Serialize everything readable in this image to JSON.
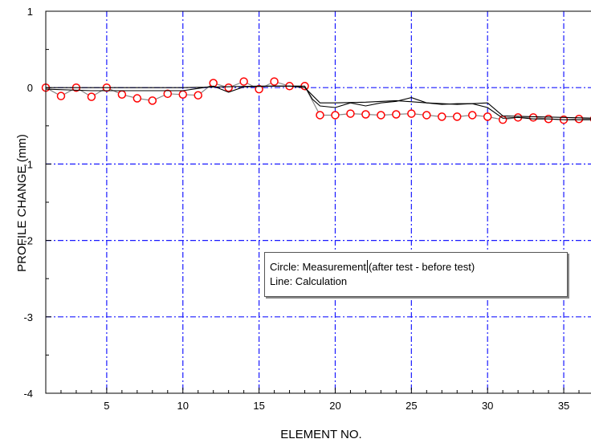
{
  "chart_data": {
    "type": "line",
    "xlabel": "ELEMENT NO.",
    "ylabel": "PROFILE CHANGE (mm)",
    "xlim": [
      1,
      37
    ],
    "ylim": [
      -4,
      1
    ],
    "x_ticks": [
      5,
      10,
      15,
      20,
      25,
      30,
      35
    ],
    "y_ticks": [
      1,
      0,
      -1,
      -2,
      -3,
      -4
    ],
    "grid": true,
    "legend": {
      "position": "lower-right",
      "circle_text_a": "Circle: Measurement",
      "circle_text_b": "(after test - before test)",
      "line_text": "Line: Calculation"
    },
    "series": [
      {
        "marker": "circle",
        "color": "#ff0000",
        "line_color": "#888888",
        "x": [
          1,
          2,
          3,
          4,
          5,
          6,
          7,
          8,
          9,
          10,
          11,
          12,
          13,
          14,
          15,
          16,
          17,
          18,
          19,
          20,
          21,
          22,
          23,
          24,
          25,
          26,
          27,
          28,
          29,
          30,
          31,
          32,
          33,
          34,
          35,
          36,
          37
        ],
        "y": [
          0,
          -0.11,
          0,
          -0.12,
          0,
          -0.09,
          -0.14,
          -0.17,
          -0.08,
          -0.09,
          -0.1,
          0.06,
          0,
          0.08,
          -0.02,
          0.08,
          0.02,
          0.02,
          -0.36,
          -0.36,
          -0.34,
          -0.35,
          -0.36,
          -0.35,
          -0.34,
          -0.36,
          -0.38,
          -0.38,
          -0.36,
          -0.38,
          -0.42,
          -0.39,
          -0.39,
          -0.41,
          -0.42,
          -0.41,
          -0.41
        ]
      },
      {
        "marker": "none",
        "color": "#000000",
        "x": [
          1,
          4,
          8,
          10,
          11,
          12,
          13,
          14,
          16,
          17,
          18,
          18.5,
          19,
          20,
          21,
          22,
          23,
          24,
          25,
          26,
          27,
          28,
          29,
          30,
          31,
          32,
          33,
          34,
          35,
          36,
          37
        ],
        "y": [
          -0.02,
          -0.04,
          -0.04,
          -0.04,
          -0.01,
          0.02,
          -0.06,
          0.01,
          0.02,
          0.02,
          0.02,
          -0.15,
          -0.24,
          -0.26,
          -0.2,
          -0.24,
          -0.2,
          -0.18,
          -0.13,
          -0.2,
          -0.22,
          -0.21,
          -0.21,
          -0.26,
          -0.4,
          -0.39,
          -0.41,
          -0.41,
          -0.42,
          -0.42,
          -0.42
        ]
      },
      {
        "marker": "none",
        "color": "#000000",
        "x": [
          1,
          5,
          10,
          15,
          17,
          18,
          19,
          20,
          22,
          24,
          26,
          28,
          30,
          31,
          33,
          35,
          37
        ],
        "y": [
          0,
          0,
          0,
          0.02,
          0.02,
          0,
          -0.2,
          -0.2,
          -0.19,
          -0.17,
          -0.2,
          -0.22,
          -0.2,
          -0.37,
          -0.38,
          -0.39,
          -0.4
        ]
      }
    ]
  }
}
